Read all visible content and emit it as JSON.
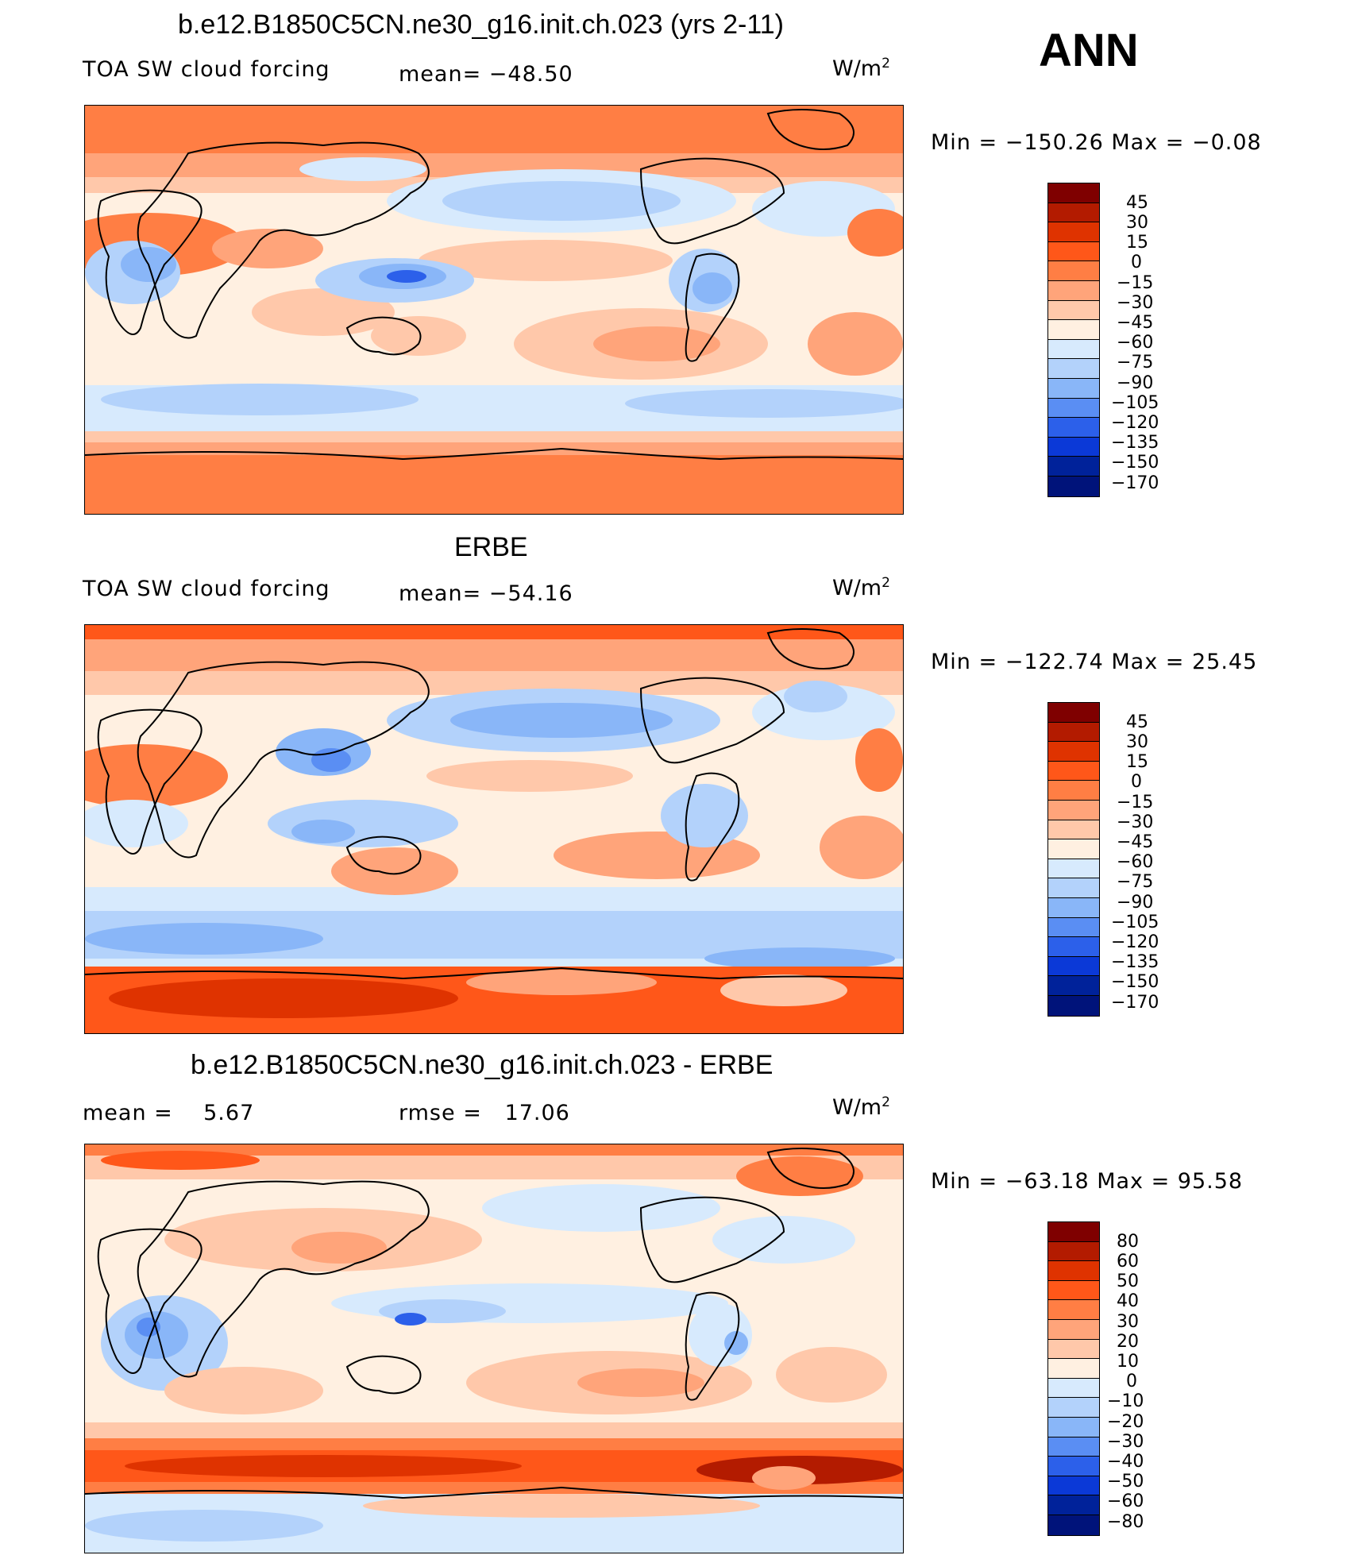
{
  "season": "ANN",
  "units_main": "W/m",
  "units_sup": "2",
  "panels": [
    {
      "title": "b.e12.B1850C5CN.ne30_g16.init.ch.023 (yrs 2-11)",
      "variable": "TOA SW cloud forcing",
      "stat1_label": "mean=",
      "stat1_value": "−48.50",
      "minmax": "Min = −150.26 Max =   −0.08",
      "levels": [
        "45",
        "30",
        "15",
        "0",
        "−15",
        "−30",
        "−45",
        "−60",
        "−75",
        "−90",
        "−105",
        "−120",
        "−135",
        "−150",
        "−170"
      ]
    },
    {
      "title": "ERBE",
      "variable": "TOA SW cloud forcing",
      "stat1_label": "mean=",
      "stat1_value": "−54.16",
      "minmax": "Min = −122.74 Max =   25.45",
      "levels": [
        "45",
        "30",
        "15",
        "0",
        "−15",
        "−30",
        "−45",
        "−60",
        "−75",
        "−90",
        "−105",
        "−120",
        "−135",
        "−150",
        "−170"
      ]
    },
    {
      "title": "b.e12.B1850C5CN.ne30_g16.init.ch.023 - ERBE",
      "stat1_label": "mean =",
      "stat1_value": "5.67",
      "stat2_label": "rmse =",
      "stat2_value": "17.06",
      "minmax": "Min = −63.18 Max =   95.58",
      "levels": [
        "80",
        "60",
        "50",
        "40",
        "30",
        "20",
        "10",
        "0",
        "−10",
        "−20",
        "−30",
        "−40",
        "−50",
        "−60",
        "−80"
      ]
    }
  ],
  "colors": {
    "scale": [
      "#7f0000",
      "#b31b00",
      "#df3300",
      "#ff5719",
      "#ff7e44",
      "#ffa47a",
      "#ffc8aa",
      "#fff0e1",
      "#d7eafd",
      "#b3d2fb",
      "#89b6f8",
      "#5a8ef3",
      "#2c60ea",
      "#0b39d7",
      "#00229a",
      "#00137a"
    ]
  }
}
